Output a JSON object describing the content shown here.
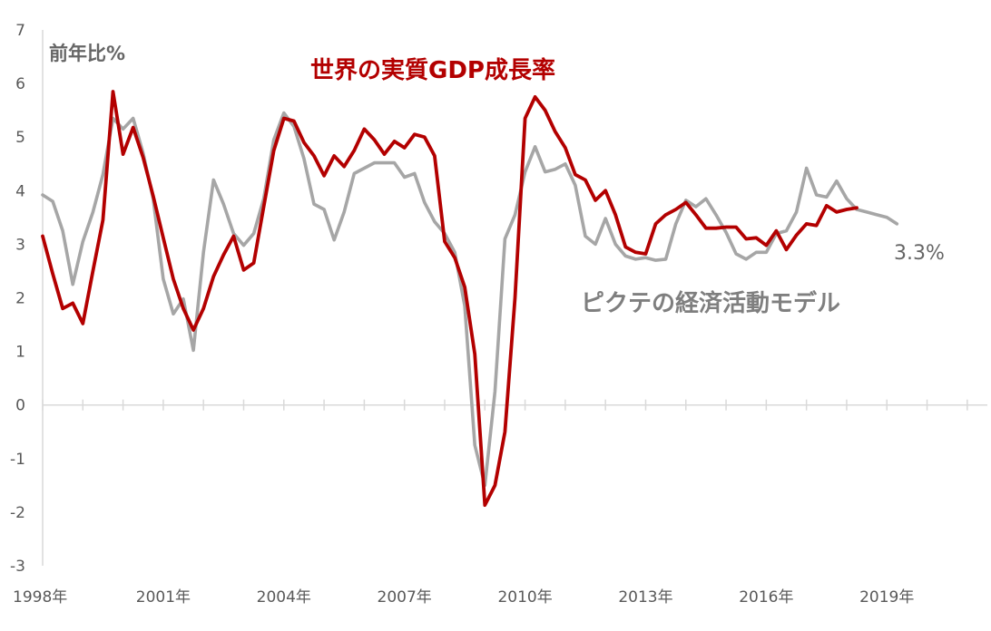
{
  "chart_data": {
    "type": "line",
    "ylabel": "前年比%",
    "ylim": [
      -3,
      7
    ],
    "yticks": [
      7,
      6,
      5,
      4,
      3,
      2,
      1,
      0,
      -1,
      -2,
      -3
    ],
    "xlim": [
      1998.0,
      2021.5
    ],
    "xticks": [
      {
        "label": "1998年",
        "value": 1998.0
      },
      {
        "label": "2001年",
        "value": 2001.0
      },
      {
        "label": "2004年",
        "value": 2004.0
      },
      {
        "label": "2007年",
        "value": 2007.0
      },
      {
        "label": "2010年",
        "value": 2010.0
      },
      {
        "label": "2013年",
        "value": 2013.0
      },
      {
        "label": "2016年",
        "value": 2016.0
      },
      {
        "label": "2019年",
        "value": 2019.0
      }
    ],
    "minor_tick_step": 1,
    "grid": false,
    "annotation": "3.3%",
    "series": [
      {
        "name": "世界の実質GDP成長率",
        "color": "#b30000",
        "points": [
          [
            1998.0,
            3.15
          ],
          [
            1998.25,
            2.45
          ],
          [
            1998.5,
            1.8
          ],
          [
            1998.75,
            1.9
          ],
          [
            1999.0,
            1.52
          ],
          [
            1999.25,
            2.5
          ],
          [
            1999.5,
            3.45
          ],
          [
            1999.75,
            5.85
          ],
          [
            2000.0,
            4.68
          ],
          [
            2000.25,
            5.18
          ],
          [
            2000.5,
            4.62
          ],
          [
            2000.75,
            3.9
          ],
          [
            2001.0,
            3.12
          ],
          [
            2001.25,
            2.35
          ],
          [
            2001.5,
            1.8
          ],
          [
            2001.75,
            1.4
          ],
          [
            2002.0,
            1.8
          ],
          [
            2002.25,
            2.4
          ],
          [
            2002.5,
            2.8
          ],
          [
            2002.75,
            3.15
          ],
          [
            2003.0,
            2.52
          ],
          [
            2003.25,
            2.65
          ],
          [
            2003.5,
            3.7
          ],
          [
            2003.75,
            4.75
          ],
          [
            2004.0,
            5.35
          ],
          [
            2004.25,
            5.3
          ],
          [
            2004.5,
            4.9
          ],
          [
            2004.75,
            4.65
          ],
          [
            2005.0,
            4.28
          ],
          [
            2005.25,
            4.65
          ],
          [
            2005.5,
            4.45
          ],
          [
            2005.75,
            4.75
          ],
          [
            2006.0,
            5.15
          ],
          [
            2006.25,
            4.95
          ],
          [
            2006.5,
            4.68
          ],
          [
            2006.75,
            4.92
          ],
          [
            2007.0,
            4.8
          ],
          [
            2007.25,
            5.05
          ],
          [
            2007.5,
            5.0
          ],
          [
            2007.75,
            4.65
          ],
          [
            2008.0,
            3.05
          ],
          [
            2008.25,
            2.75
          ],
          [
            2008.5,
            2.2
          ],
          [
            2008.75,
            0.95
          ],
          [
            2009.0,
            -1.87
          ],
          [
            2009.25,
            -1.5
          ],
          [
            2009.5,
            -0.5
          ],
          [
            2009.75,
            2.0
          ],
          [
            2010.0,
            5.35
          ],
          [
            2010.25,
            5.75
          ],
          [
            2010.5,
            5.5
          ],
          [
            2010.75,
            5.1
          ],
          [
            2011.0,
            4.8
          ],
          [
            2011.25,
            4.3
          ],
          [
            2011.5,
            4.2
          ],
          [
            2011.75,
            3.82
          ],
          [
            2012.0,
            4.0
          ],
          [
            2012.25,
            3.55
          ],
          [
            2012.5,
            2.95
          ],
          [
            2012.75,
            2.85
          ],
          [
            2013.0,
            2.82
          ],
          [
            2013.25,
            3.38
          ],
          [
            2013.5,
            3.55
          ],
          [
            2013.75,
            3.65
          ],
          [
            2014.0,
            3.78
          ],
          [
            2014.25,
            3.55
          ],
          [
            2014.5,
            3.3
          ],
          [
            2014.75,
            3.3
          ],
          [
            2015.0,
            3.32
          ],
          [
            2015.25,
            3.32
          ],
          [
            2015.5,
            3.1
          ],
          [
            2015.75,
            3.12
          ],
          [
            2016.0,
            2.98
          ],
          [
            2016.25,
            3.25
          ],
          [
            2016.5,
            2.9
          ],
          [
            2016.75,
            3.17
          ],
          [
            2017.0,
            3.38
          ],
          [
            2017.25,
            3.35
          ],
          [
            2017.5,
            3.72
          ],
          [
            2017.75,
            3.6
          ],
          [
            2018.0,
            3.65
          ],
          [
            2018.25,
            3.68
          ]
        ]
      },
      {
        "name": "ピクテの経済活動モデル",
        "color": "#a6a6a6",
        "points": [
          [
            1998.0,
            3.92
          ],
          [
            1998.25,
            3.8
          ],
          [
            1998.5,
            3.25
          ],
          [
            1998.75,
            2.25
          ],
          [
            1999.0,
            3.05
          ],
          [
            1999.25,
            3.6
          ],
          [
            1999.5,
            4.3
          ],
          [
            1999.75,
            5.35
          ],
          [
            2000.0,
            5.15
          ],
          [
            2000.25,
            5.35
          ],
          [
            2000.5,
            4.7
          ],
          [
            2000.75,
            3.85
          ],
          [
            2001.0,
            2.35
          ],
          [
            2001.25,
            1.7
          ],
          [
            2001.5,
            1.98
          ],
          [
            2001.75,
            1.02
          ],
          [
            2002.0,
            2.85
          ],
          [
            2002.25,
            4.2
          ],
          [
            2002.5,
            3.75
          ],
          [
            2002.75,
            3.2
          ],
          [
            2003.0,
            2.98
          ],
          [
            2003.25,
            3.2
          ],
          [
            2003.5,
            3.85
          ],
          [
            2003.75,
            4.95
          ],
          [
            2004.0,
            5.45
          ],
          [
            2004.25,
            5.2
          ],
          [
            2004.5,
            4.6
          ],
          [
            2004.75,
            3.75
          ],
          [
            2005.0,
            3.65
          ],
          [
            2005.25,
            3.08
          ],
          [
            2005.5,
            3.6
          ],
          [
            2005.75,
            4.32
          ],
          [
            2006.0,
            4.42
          ],
          [
            2006.25,
            4.52
          ],
          [
            2006.5,
            4.52
          ],
          [
            2006.75,
            4.52
          ],
          [
            2007.0,
            4.25
          ],
          [
            2007.25,
            4.32
          ],
          [
            2007.5,
            3.78
          ],
          [
            2007.75,
            3.42
          ],
          [
            2008.0,
            3.2
          ],
          [
            2008.25,
            2.85
          ],
          [
            2008.5,
            1.85
          ],
          [
            2008.75,
            -0.75
          ],
          [
            2009.0,
            -1.5
          ],
          [
            2009.25,
            0.25
          ],
          [
            2009.5,
            3.1
          ],
          [
            2009.75,
            3.55
          ],
          [
            2010.0,
            4.35
          ],
          [
            2010.25,
            4.82
          ],
          [
            2010.5,
            4.35
          ],
          [
            2010.75,
            4.4
          ],
          [
            2011.0,
            4.5
          ],
          [
            2011.25,
            4.1
          ],
          [
            2011.5,
            3.15
          ],
          [
            2011.75,
            3.0
          ],
          [
            2012.0,
            3.48
          ],
          [
            2012.25,
            3.0
          ],
          [
            2012.5,
            2.78
          ],
          [
            2012.75,
            2.72
          ],
          [
            2013.0,
            2.75
          ],
          [
            2013.25,
            2.7
          ],
          [
            2013.5,
            2.72
          ],
          [
            2013.75,
            3.38
          ],
          [
            2014.0,
            3.82
          ],
          [
            2014.25,
            3.7
          ],
          [
            2014.5,
            3.85
          ],
          [
            2014.75,
            3.55
          ],
          [
            2015.0,
            3.22
          ],
          [
            2015.25,
            2.82
          ],
          [
            2015.5,
            2.72
          ],
          [
            2015.75,
            2.85
          ],
          [
            2016.0,
            2.85
          ],
          [
            2016.25,
            3.2
          ],
          [
            2016.5,
            3.25
          ],
          [
            2016.75,
            3.6
          ],
          [
            2017.0,
            4.42
          ],
          [
            2017.25,
            3.92
          ],
          [
            2017.5,
            3.88
          ],
          [
            2017.75,
            4.18
          ],
          [
            2018.0,
            3.85
          ],
          [
            2018.25,
            3.65
          ],
          [
            2018.5,
            3.6
          ],
          [
            2018.75,
            3.55
          ],
          [
            2019.0,
            3.5
          ],
          [
            2019.25,
            3.38
          ]
        ]
      }
    ]
  }
}
